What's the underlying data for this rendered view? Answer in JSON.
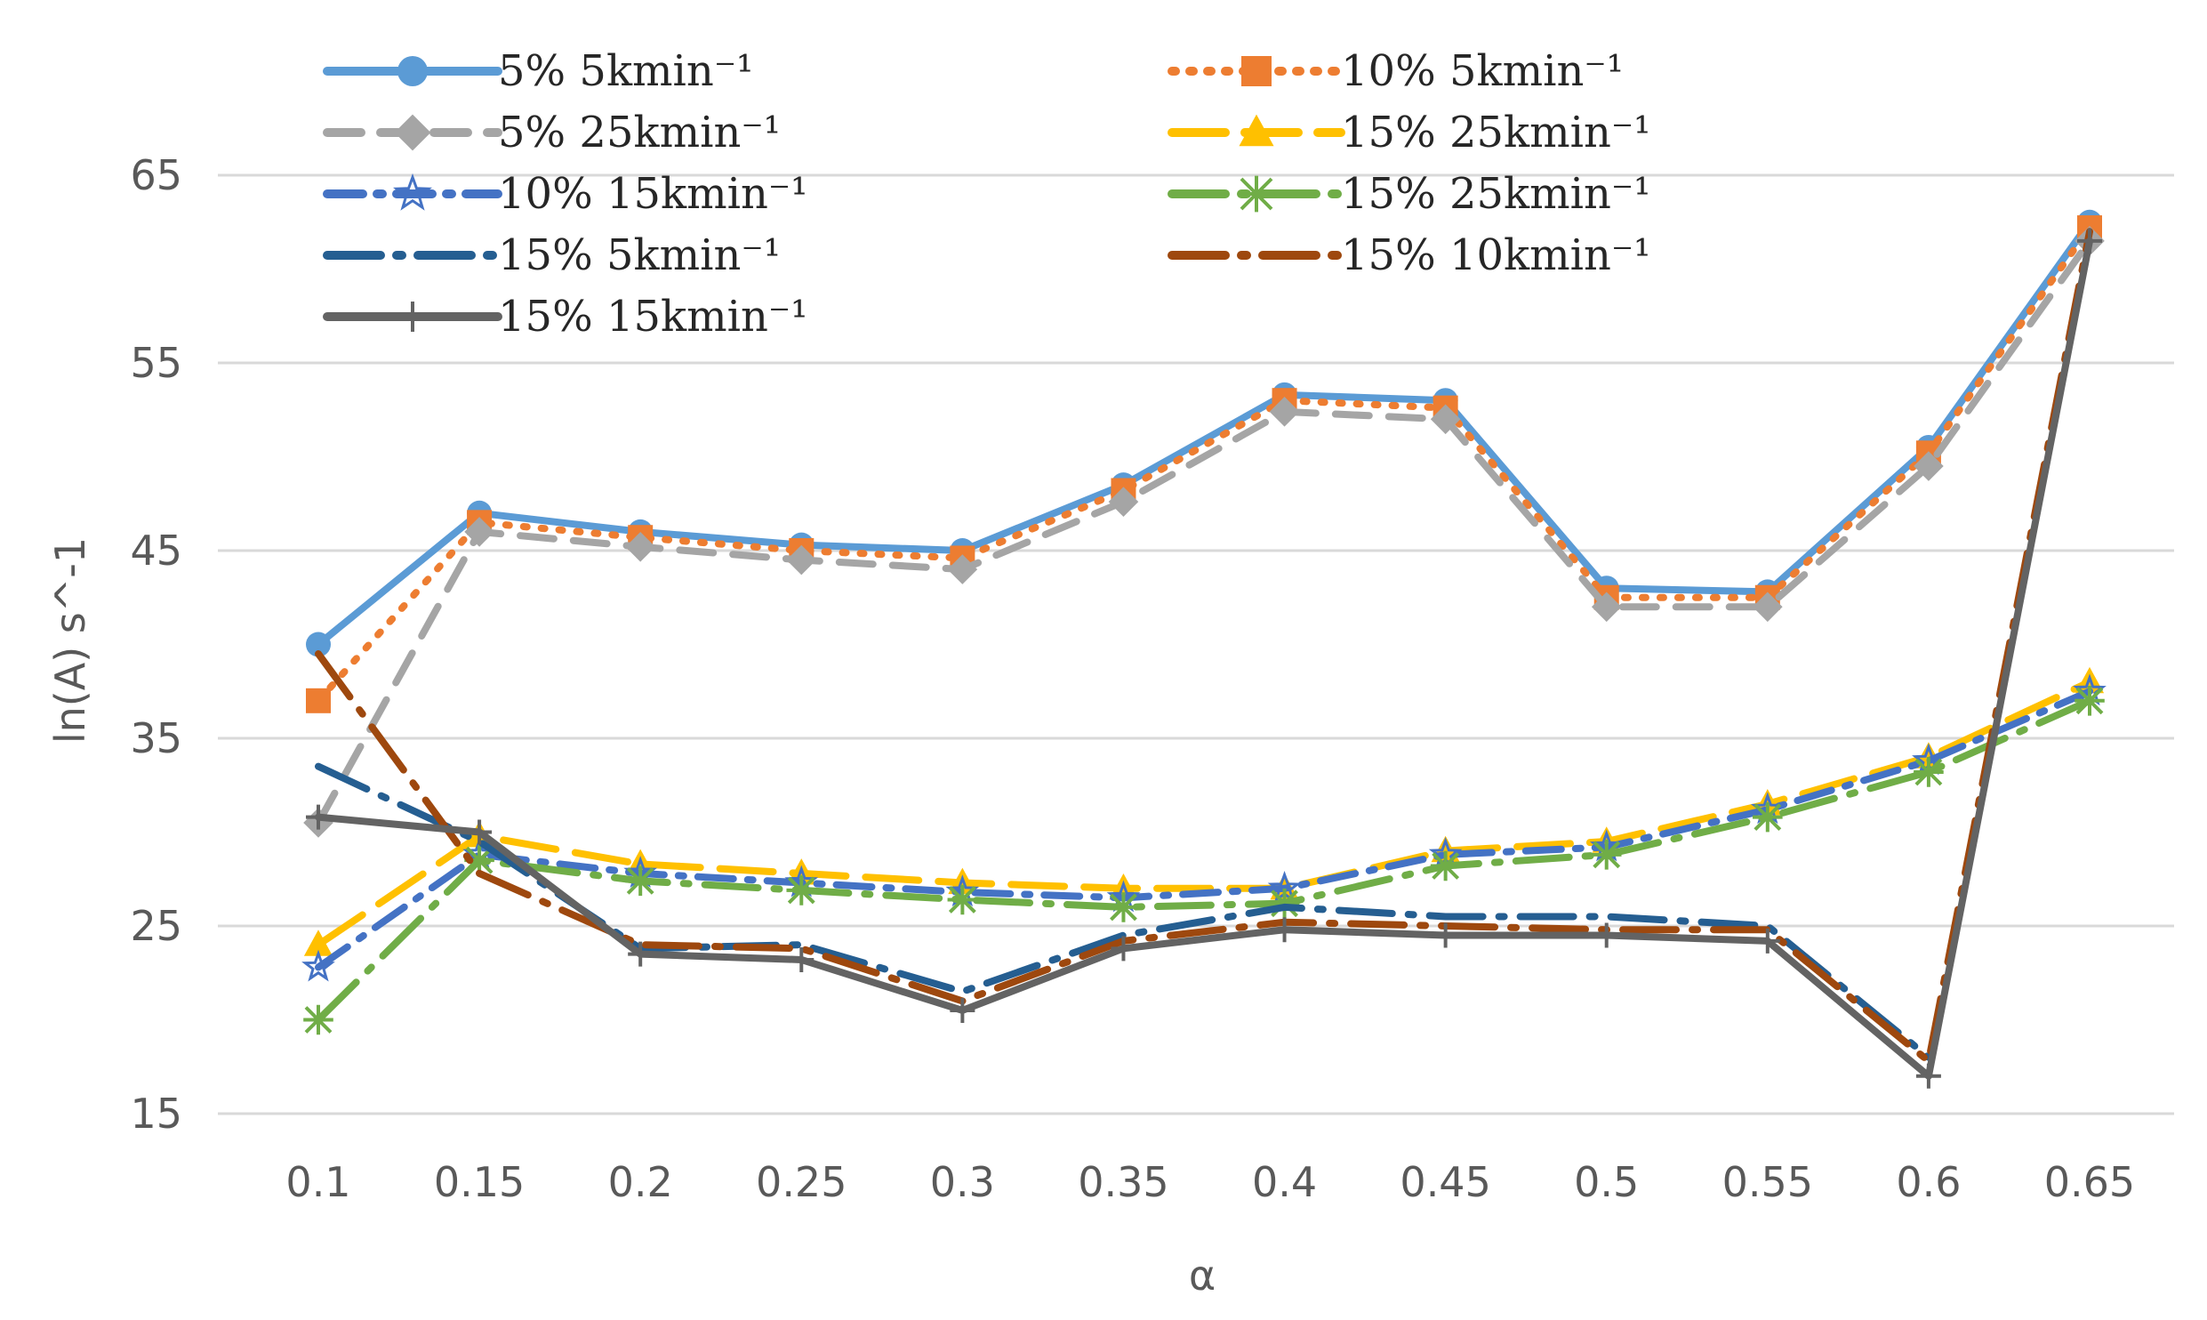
{
  "chart_data": {
    "type": "line",
    "xlabel": "α",
    "ylabel": "ln(A) s^-1",
    "ylim": [
      15,
      65
    ],
    "yticks": [
      15,
      25,
      35,
      45,
      55,
      65
    ],
    "grid": "horizontal",
    "legend_placement": "top-left, two columns",
    "categories": [
      "0.1",
      "0.15",
      "0.2",
      "0.25",
      "0.3",
      "0.35",
      "0.4",
      "0.45",
      "0.5",
      "0.55",
      "0.6",
      "0.65"
    ],
    "series": [
      {
        "name": "5% 5kmin⁻¹",
        "color": "#5B9BD5",
        "dash": "solid",
        "marker": "circle",
        "values": [
          40,
          47,
          46,
          45.3,
          45,
          48.5,
          53.3,
          53,
          43,
          42.8,
          50.5,
          62.5
        ]
      },
      {
        "name": "10% 5kmin⁻¹",
        "color": "#ED7D31",
        "dash": "dot",
        "marker": "square",
        "values": [
          37,
          46.5,
          45.7,
          45,
          44.6,
          48.2,
          53,
          52.6,
          42.5,
          42.5,
          50.2,
          62.2
        ]
      },
      {
        "name": "5% 25kmin⁻¹",
        "color": "#A5A5A5",
        "dash": "dash",
        "marker": "diamond",
        "values": [
          30.5,
          46,
          45.2,
          44.5,
          44,
          47.6,
          52.4,
          52,
          42,
          42,
          49.5,
          61.5
        ]
      },
      {
        "name": "15% 25kmin⁻¹",
        "color": "#FFC000",
        "dash": "longdash",
        "marker": "triangle",
        "values": [
          24,
          29.8,
          28.3,
          27.8,
          27.3,
          27,
          27,
          29,
          29.5,
          31.5,
          34,
          38
        ]
      },
      {
        "name": "10% 15kmin⁻¹",
        "color": "#4472C4",
        "dash": "dashdot",
        "marker": "star",
        "values": [
          22.8,
          28.8,
          27.8,
          27.3,
          26.8,
          26.5,
          27,
          28.8,
          29.2,
          31.2,
          33.8,
          37.5
        ]
      },
      {
        "name": "15% 25kmin⁻¹",
        "color": "#70AD47",
        "dash": "longdashdot",
        "marker": "asterisk",
        "values": [
          20,
          28.5,
          27.4,
          26.9,
          26.4,
          26,
          26.2,
          28.2,
          28.8,
          30.8,
          33.2,
          37
        ]
      },
      {
        "name": "15% 5kmin⁻¹",
        "color": "#255E91",
        "dash": "longdashdot",
        "marker": "none",
        "values": [
          33.5,
          29.5,
          23.8,
          24,
          21.5,
          24.5,
          26,
          25.5,
          25.5,
          25,
          18,
          null
        ]
      },
      {
        "name": "15% 10kmin⁻¹",
        "color": "#9E480E",
        "dash": "longdashdot",
        "marker": "none",
        "values": [
          39.5,
          27.8,
          24,
          23.8,
          21,
          24.2,
          25.2,
          25,
          24.8,
          24.8,
          17.8,
          62
        ]
      },
      {
        "name": "15% 15kmin⁻¹",
        "color": "#636363",
        "dash": "solid",
        "marker": "plus",
        "values": [
          30.8,
          30,
          23.5,
          23.2,
          20.5,
          23.8,
          24.8,
          24.5,
          24.5,
          24.2,
          17,
          61.5
        ]
      }
    ]
  },
  "legend": {
    "left": [
      {
        "label": "5% 5kmin⁻¹",
        "series": 0
      },
      {
        "label": "5% 25kmin⁻¹",
        "series": 2
      },
      {
        "label": "10% 15kmin⁻¹",
        "series": 4
      },
      {
        "label": "15% 5kmin⁻¹",
        "series": 6
      },
      {
        "label": "15% 15kmin⁻¹",
        "series": 8
      }
    ],
    "right": [
      {
        "label": "10% 5kmin⁻¹",
        "series": 1
      },
      {
        "label": "15% 25kmin⁻¹",
        "series": 3
      },
      {
        "label": "15% 25kmin⁻¹",
        "series": 5
      },
      {
        "label": "15% 10kmin⁻¹",
        "series": 7
      }
    ]
  }
}
